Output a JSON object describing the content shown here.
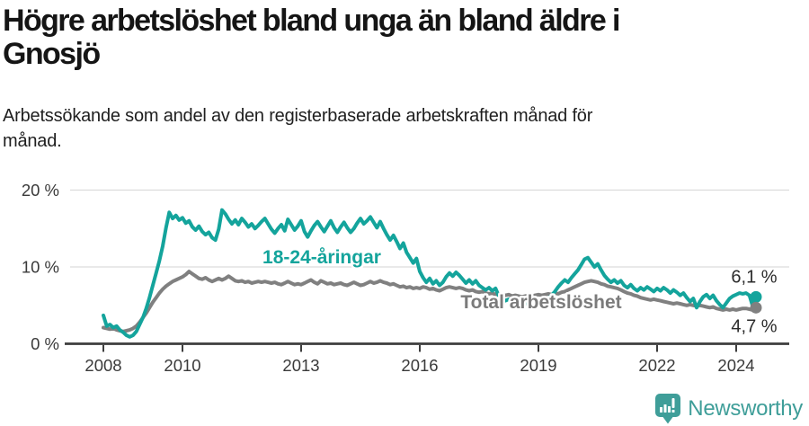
{
  "header": {
    "title_lines": [
      "Högre arbetslöshet bland unga än bland äldre i",
      "Gnosjö"
    ],
    "subtitle_lines": [
      "Arbetssökande som andel av den registerbaserade arbetskraften månad för",
      "månad."
    ]
  },
  "footer": {
    "brand": "Newsworthy",
    "brand_color": "#3f9e99",
    "logo_icon": "newsworthy-speech-bubble-barchart-icon"
  },
  "chart_data": {
    "type": "line",
    "title": "Högre arbetslöshet bland unga än bland äldre i Gnosjö",
    "subtitle": "Arbetssökande som andel av den registerbaserade arbetskraften månad för månad.",
    "x_interval": "monthly",
    "x_start": "2008-01",
    "x_end": "2024-07",
    "xlabel": "",
    "ylabel": "",
    "ylim": [
      0,
      21.5
    ],
    "grid": true,
    "xticks": [
      2008,
      2010,
      2013,
      2016,
      2019,
      2022,
      2024
    ],
    "yticks": [
      {
        "value": 0,
        "label": "0 %"
      },
      {
        "value": 10,
        "label": "10 %"
      },
      {
        "value": 20,
        "label": "20 %"
      }
    ],
    "axis_color": "#3d3d3d",
    "gridline_color": "#dcdcdc",
    "series": [
      {
        "id": "youth",
        "name": "18-24-åringar",
        "color": "#14a49c",
        "label_color": "#14a49c",
        "end_label": "6,1 %",
        "end_label_position": "above",
        "values": [
          3.7,
          2.3,
          2.5,
          2.1,
          2.3,
          1.8,
          1.5,
          1.1,
          0.9,
          1.1,
          1.6,
          2.5,
          3.4,
          4.6,
          6.0,
          7.6,
          9.2,
          10.8,
          12.7,
          15.1,
          17.1,
          16.3,
          16.7,
          16.1,
          16.4,
          15.7,
          16.0,
          15.2,
          14.8,
          15.3,
          14.6,
          14.2,
          14.5,
          13.8,
          13.5,
          14.9,
          17.4,
          16.9,
          16.2,
          15.6,
          16.1,
          15.5,
          16.3,
          15.8,
          15.2,
          15.6,
          15.0,
          15.4,
          15.9,
          16.3,
          15.6,
          14.9,
          14.4,
          15.0,
          15.5,
          14.7,
          16.2,
          15.5,
          14.8,
          15.3,
          16.0,
          14.6,
          13.9,
          14.7,
          15.4,
          15.9,
          15.2,
          14.6,
          15.3,
          16.0,
          15.1,
          14.5,
          15.2,
          15.8,
          15.1,
          14.5,
          15.0,
          15.7,
          16.3,
          15.6,
          16.0,
          16.5,
          15.8,
          15.1,
          15.9,
          15.0,
          14.2,
          13.5,
          14.1,
          13.3,
          12.4,
          13.1,
          11.9,
          11.2,
          10.5,
          11.1,
          9.4,
          8.6,
          8.0,
          8.5,
          7.8,
          8.2,
          7.6,
          8.0,
          8.7,
          9.2,
          8.8,
          9.3,
          8.9,
          8.4,
          7.9,
          8.3,
          7.8,
          8.2,
          7.6,
          7.3,
          7.0,
          7.3,
          6.9,
          7.2,
          6.2,
          5.9,
          5.6,
          5.8,
          5.4,
          5.6,
          5.3,
          5.5,
          5.2,
          5.4,
          5.6,
          5.3,
          5.5,
          5.8,
          5.6,
          5.9,
          6.3,
          6.8,
          7.4,
          7.9,
          8.3,
          8.0,
          8.6,
          9.1,
          9.6,
          10.3,
          11.0,
          11.2,
          10.6,
          10.0,
          10.4,
          9.6,
          8.9,
          8.4,
          8.0,
          8.3,
          7.9,
          8.2,
          7.6,
          7.3,
          7.7,
          7.2,
          6.9,
          7.3,
          7.0,
          7.4,
          7.1,
          6.8,
          7.2,
          6.9,
          7.3,
          7.0,
          6.6,
          7.0,
          6.7,
          6.3,
          6.6,
          6.0,
          5.5,
          5.9,
          4.7,
          5.5,
          6.1,
          6.4,
          5.9,
          6.3,
          5.6,
          5.1,
          4.7,
          5.3,
          5.9,
          6.2,
          6.4,
          6.6,
          6.5,
          6.6,
          6.3,
          4.9,
          6.1
        ]
      },
      {
        "id": "total",
        "name": "Total arbetslöshet",
        "color": "#808080",
        "label_color": "#7b7b7b",
        "end_label": "4,7 %",
        "end_label_position": "below",
        "values": [
          2.1,
          2.0,
          1.9,
          2.0,
          1.8,
          1.7,
          1.6,
          1.7,
          1.8,
          2.0,
          2.3,
          2.8,
          3.4,
          4.0,
          4.7,
          5.4,
          6.0,
          6.6,
          7.1,
          7.5,
          7.8,
          8.1,
          8.3,
          8.5,
          8.7,
          9.0,
          9.4,
          9.1,
          8.8,
          8.5,
          8.4,
          8.6,
          8.3,
          8.1,
          8.3,
          8.5,
          8.3,
          8.5,
          8.8,
          8.5,
          8.2,
          8.1,
          8.2,
          8.0,
          8.1,
          7.9,
          8.0,
          8.1,
          8.0,
          8.1,
          8.0,
          7.9,
          8.0,
          7.8,
          7.7,
          7.9,
          8.1,
          7.9,
          7.7,
          7.8,
          7.7,
          7.9,
          8.1,
          8.3,
          8.0,
          7.8,
          8.2,
          8.0,
          7.8,
          7.9,
          7.7,
          7.8,
          7.9,
          7.7,
          7.6,
          7.8,
          8.0,
          7.8,
          7.6,
          7.7,
          7.9,
          8.1,
          7.9,
          8.0,
          8.2,
          8.0,
          7.9,
          7.7,
          7.8,
          7.6,
          7.4,
          7.5,
          7.3,
          7.4,
          7.2,
          7.3,
          7.2,
          7.4,
          7.3,
          7.1,
          7.2,
          7.0,
          6.9,
          7.1,
          7.3,
          7.4,
          7.3,
          7.2,
          7.3,
          7.2,
          7.0,
          6.9,
          7.0,
          6.8,
          6.7,
          6.8,
          6.6,
          6.5,
          6.6,
          6.4,
          6.5,
          6.4,
          6.3,
          6.4,
          6.2,
          6.3,
          6.2,
          6.1,
          6.2,
          6.3,
          6.2,
          6.3,
          6.4,
          6.3,
          6.4,
          6.5,
          6.4,
          6.6,
          6.5,
          6.7,
          6.8,
          7.0,
          7.2,
          7.4,
          7.6,
          7.8,
          8.0,
          8.1,
          8.2,
          8.1,
          8.0,
          7.8,
          7.7,
          7.5,
          7.4,
          7.3,
          7.2,
          7.0,
          6.8,
          6.6,
          6.5,
          6.3,
          6.2,
          6.0,
          5.9,
          5.8,
          5.7,
          5.8,
          5.7,
          5.6,
          5.5,
          5.4,
          5.3,
          5.2,
          5.3,
          5.2,
          5.1,
          5.0,
          5.1,
          5.0,
          4.9,
          5.0,
          4.9,
          4.8,
          4.7,
          4.8,
          4.6,
          4.5,
          4.4,
          4.5,
          4.4,
          4.5,
          4.4,
          4.5,
          4.6,
          4.6,
          4.5,
          4.4,
          4.7
        ]
      }
    ]
  }
}
